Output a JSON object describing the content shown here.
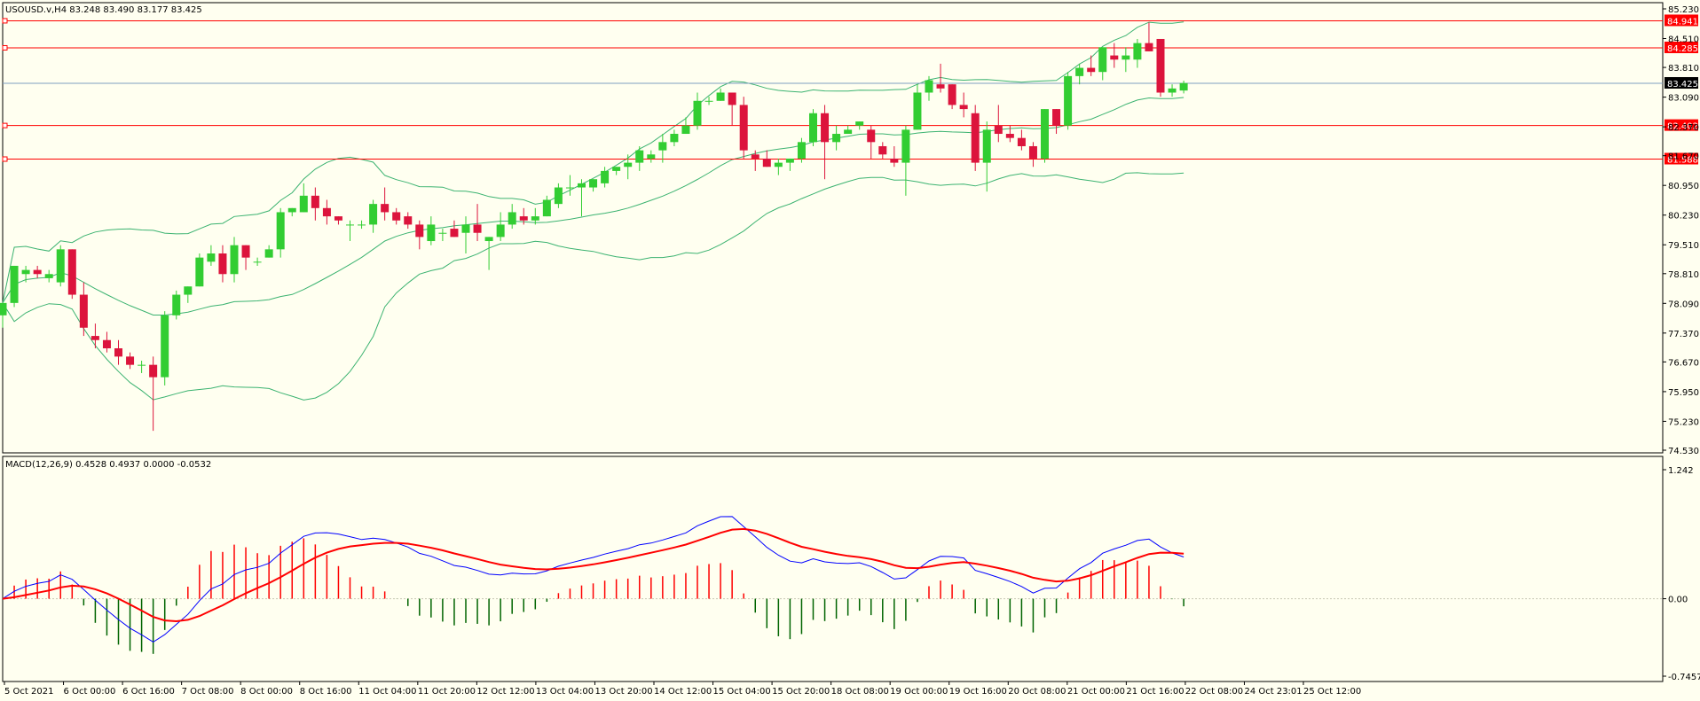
{
  "colors": {
    "background": "#fffff0",
    "bull": "#32cd32",
    "bear": "#dc143c",
    "bands": "#3cb371",
    "levels": "#ff0000",
    "current_line": "#7f9fbf",
    "macd_line": "#0000ff",
    "signal_line": "#ff0000"
  },
  "main_chart": {
    "header": "USOUSD.v,H4  83.248 83.490 83.177 83.425",
    "price_min": 74.53,
    "price_max": 85.23,
    "y_ticks": [
      "85.230",
      "84.510",
      "83.810",
      "83.090",
      "82.370",
      "81.670",
      "80.950",
      "80.230",
      "79.510",
      "78.810",
      "78.090",
      "77.370",
      "76.670",
      "75.950",
      "75.230",
      "74.530"
    ],
    "levels": [
      {
        "label": "84.941",
        "value": 84.941
      },
      {
        "label": "84.285",
        "value": 84.285
      },
      {
        "label": "82.402",
        "value": 82.402
      },
      {
        "label": "81.588",
        "value": 81.588
      }
    ],
    "current_price": {
      "label": "83.425",
      "value": 83.425
    }
  },
  "macd_panel": {
    "header": "MACD(12,26,9) 0.4528 0.4937 0.0000 -0.0532",
    "y_top": 1.242,
    "y_bottom": -0.7457,
    "y_ticks": [
      "1.242",
      "0.00",
      "-0.7457"
    ]
  },
  "x_axis": {
    "labels": [
      "5 Oct 2021",
      "6 Oct 00:00",
      "6 Oct 16:00",
      "7 Oct 08:00",
      "8 Oct 00:00",
      "8 Oct 16:00",
      "11 Oct 04:00",
      "11 Oct 20:00",
      "12 Oct 12:00",
      "13 Oct 04:00",
      "13 Oct 20:00",
      "14 Oct 12:00",
      "15 Oct 04:00",
      "15 Oct 20:00",
      "18 Oct 08:00",
      "19 Oct 00:00",
      "19 Oct 16:00",
      "20 Oct 08:00",
      "21 Oct 00:00",
      "21 Oct 16:00",
      "22 Oct 08:00",
      "24 Oct 23:01",
      "25 Oct 12:00"
    ]
  },
  "chart_data": {
    "type": "candlestick",
    "series": [
      {
        "name": "USOUSD.v,H4",
        "candles": [
          [
            77.8,
            78.1,
            77.5,
            78.1
          ],
          [
            78.1,
            79.0,
            78.0,
            79.0
          ],
          [
            78.8,
            79.0,
            78.6,
            78.9
          ],
          [
            78.9,
            79.0,
            78.7,
            78.8
          ],
          [
            78.7,
            78.9,
            78.6,
            78.8
          ],
          [
            78.6,
            79.5,
            78.5,
            79.4
          ],
          [
            79.4,
            79.4,
            78.2,
            78.3
          ],
          [
            78.3,
            78.6,
            77.3,
            77.5
          ],
          [
            77.3,
            77.6,
            77.0,
            77.2
          ],
          [
            77.2,
            77.4,
            76.9,
            77.0
          ],
          [
            77.0,
            77.2,
            76.6,
            76.8
          ],
          [
            76.8,
            76.9,
            76.5,
            76.6
          ],
          [
            76.6,
            76.7,
            76.4,
            76.6
          ],
          [
            76.6,
            76.8,
            75.0,
            76.3
          ],
          [
            76.3,
            77.9,
            76.1,
            77.8
          ],
          [
            77.8,
            78.4,
            77.7,
            78.3
          ],
          [
            78.3,
            78.5,
            78.1,
            78.5
          ],
          [
            78.5,
            79.3,
            78.5,
            79.2
          ],
          [
            79.1,
            79.5,
            79.0,
            79.3
          ],
          [
            79.3,
            79.5,
            78.6,
            78.8
          ],
          [
            78.8,
            79.7,
            78.6,
            79.5
          ],
          [
            79.5,
            79.5,
            78.9,
            79.2
          ],
          [
            79.1,
            79.2,
            79.0,
            79.1
          ],
          [
            79.2,
            79.5,
            79.2,
            79.4
          ],
          [
            79.4,
            80.4,
            79.2,
            80.3
          ],
          [
            80.3,
            80.4,
            80.2,
            80.4
          ],
          [
            80.3,
            81.0,
            80.3,
            80.7
          ],
          [
            80.7,
            80.9,
            80.1,
            80.4
          ],
          [
            80.4,
            80.6,
            80.0,
            80.2
          ],
          [
            80.2,
            80.2,
            80.0,
            80.1
          ],
          [
            80.0,
            80.1,
            79.6,
            80.0
          ],
          [
            80.0,
            80.1,
            79.9,
            80.0
          ],
          [
            80.0,
            80.6,
            79.8,
            80.5
          ],
          [
            80.5,
            80.9,
            80.1,
            80.3
          ],
          [
            80.3,
            80.4,
            80.0,
            80.1
          ],
          [
            80.2,
            80.3,
            79.9,
            80.0
          ],
          [
            80.0,
            80.1,
            79.4,
            79.7
          ],
          [
            79.6,
            80.2,
            79.5,
            80.0
          ],
          [
            79.8,
            79.9,
            79.6,
            79.8
          ],
          [
            79.9,
            80.1,
            79.7,
            79.7
          ],
          [
            79.8,
            80.2,
            79.3,
            80.0
          ],
          [
            80.0,
            80.5,
            79.6,
            79.8
          ],
          [
            79.6,
            79.7,
            78.9,
            79.7
          ],
          [
            79.7,
            80.3,
            79.6,
            80.0
          ],
          [
            80.0,
            80.5,
            79.9,
            80.3
          ],
          [
            80.2,
            80.4,
            80.0,
            80.1
          ],
          [
            80.1,
            80.4,
            80.0,
            80.2
          ],
          [
            80.2,
            80.7,
            80.2,
            80.6
          ],
          [
            80.5,
            81.0,
            80.4,
            80.9
          ],
          [
            80.9,
            81.2,
            80.7,
            80.9
          ],
          [
            80.9,
            81.1,
            80.2,
            81.0
          ],
          [
            80.9,
            81.1,
            80.8,
            81.1
          ],
          [
            81.0,
            81.4,
            80.9,
            81.3
          ],
          [
            81.3,
            81.4,
            81.2,
            81.4
          ],
          [
            81.4,
            81.7,
            81.1,
            81.5
          ],
          [
            81.5,
            81.9,
            81.3,
            81.8
          ],
          [
            81.6,
            81.8,
            81.5,
            81.7
          ],
          [
            81.8,
            82.2,
            81.5,
            82.0
          ],
          [
            82.0,
            82.3,
            81.9,
            82.2
          ],
          [
            82.2,
            82.6,
            82.2,
            82.4
          ],
          [
            82.4,
            83.2,
            82.3,
            83.0
          ],
          [
            83.0,
            83.1,
            82.9,
            83.0
          ],
          [
            83.0,
            83.3,
            83.0,
            83.2
          ],
          [
            83.2,
            83.2,
            82.4,
            82.9
          ],
          [
            82.9,
            83.1,
            81.6,
            81.8
          ],
          [
            81.7,
            81.8,
            81.3,
            81.6
          ],
          [
            81.6,
            81.8,
            81.4,
            81.4
          ],
          [
            81.4,
            81.6,
            81.2,
            81.5
          ],
          [
            81.5,
            81.6,
            81.3,
            81.6
          ],
          [
            81.6,
            82.1,
            81.5,
            82.0
          ],
          [
            82.0,
            82.8,
            81.9,
            82.7
          ],
          [
            82.7,
            82.9,
            81.1,
            82.0
          ],
          [
            82.0,
            82.4,
            81.8,
            82.2
          ],
          [
            82.2,
            82.4,
            82.2,
            82.3
          ],
          [
            82.4,
            82.5,
            82.3,
            82.5
          ],
          [
            82.3,
            82.4,
            81.6,
            82.0
          ],
          [
            81.9,
            82.0,
            81.6,
            81.7
          ],
          [
            81.6,
            81.9,
            81.4,
            81.5
          ],
          [
            81.5,
            82.4,
            80.7,
            82.3
          ],
          [
            82.3,
            83.4,
            82.3,
            83.2
          ],
          [
            83.2,
            83.6,
            83.0,
            83.5
          ],
          [
            83.4,
            83.9,
            83.2,
            83.3
          ],
          [
            83.4,
            83.4,
            82.8,
            82.9
          ],
          [
            82.9,
            83.2,
            82.6,
            82.8
          ],
          [
            82.7,
            82.9,
            81.3,
            81.5
          ],
          [
            81.5,
            82.5,
            80.8,
            82.3
          ],
          [
            82.4,
            82.9,
            82.0,
            82.2
          ],
          [
            82.2,
            82.4,
            82.0,
            82.1
          ],
          [
            82.1,
            82.3,
            81.8,
            81.9
          ],
          [
            81.9,
            82.0,
            81.4,
            81.6
          ],
          [
            81.6,
            82.8,
            81.5,
            82.8
          ],
          [
            82.8,
            82.8,
            82.2,
            82.4
          ],
          [
            82.4,
            83.7,
            82.3,
            83.6
          ],
          [
            83.6,
            83.9,
            83.4,
            83.8
          ],
          [
            83.8,
            84.1,
            83.6,
            83.7
          ],
          [
            83.7,
            84.3,
            83.5,
            84.3
          ],
          [
            84.1,
            84.4,
            83.8,
            84.0
          ],
          [
            84.0,
            84.3,
            83.7,
            84.1
          ],
          [
            84.0,
            84.5,
            83.8,
            84.4
          ],
          [
            84.4,
            84.9,
            84.2,
            84.2
          ],
          [
            84.5,
            84.5,
            83.1,
            83.2
          ],
          [
            83.2,
            83.4,
            83.1,
            83.3
          ],
          [
            83.25,
            83.49,
            83.18,
            83.43
          ]
        ]
      }
    ],
    "x_range_label": [
      "5 Oct 2021",
      "25 Oct 12:00"
    ],
    "y_range": [
      74.53,
      85.23
    ],
    "indicators": [
      {
        "name": "Bollinger Bands",
        "lines": [
          "upper",
          "middle",
          "lower"
        ]
      },
      {
        "name": "MACD(12,26,9)",
        "values": {
          "macd": 0.4528,
          "signal": 0.4937,
          "extra1": 0.0,
          "extra2": -0.0532
        },
        "y_range": [
          -0.7457,
          1.242
        ]
      }
    ]
  }
}
